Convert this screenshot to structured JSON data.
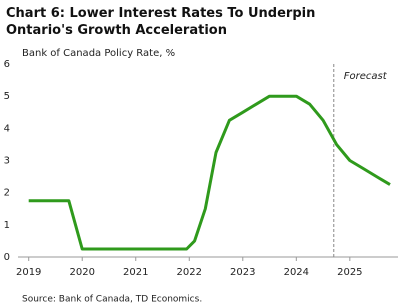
{
  "chart_data": {
    "type": "line",
    "title": "Chart 6: Lower Interest Rates To Underpin Ontario's Growth Acceleration",
    "subtitle": "Bank of Canada Policy Rate, %",
    "source": "Source:  Bank of Canada, TD Economics.",
    "x": [
      2019.0,
      2019.75,
      2020.0,
      2020.25,
      2020.5,
      2020.75,
      2021.0,
      2021.25,
      2021.5,
      2021.75,
      2021.95,
      2022.1,
      2022.3,
      2022.5,
      2022.75,
      2023.0,
      2023.25,
      2023.5,
      2023.75,
      2024.0,
      2024.25,
      2024.5,
      2024.75,
      2025.0,
      2025.25,
      2025.5,
      2025.75
    ],
    "values": [
      1.75,
      1.75,
      0.25,
      0.25,
      0.25,
      0.25,
      0.25,
      0.25,
      0.25,
      0.25,
      0.25,
      0.5,
      1.5,
      3.25,
      4.25,
      4.5,
      4.75,
      5.0,
      5.0,
      5.0,
      4.75,
      4.25,
      3.5,
      3.0,
      2.75,
      2.5,
      2.25
    ],
    "color": "#2f9a1c",
    "xlim": [
      2018.8,
      2025.9
    ],
    "xticks": [
      2019,
      2020,
      2021,
      2022,
      2023,
      2024,
      2025
    ],
    "ylim": [
      0,
      6
    ],
    "yticks": [
      0,
      1,
      2,
      3,
      4,
      5,
      6
    ],
    "grid": false,
    "forecast_x": 2024.7,
    "forecast_label": "Forecast"
  }
}
